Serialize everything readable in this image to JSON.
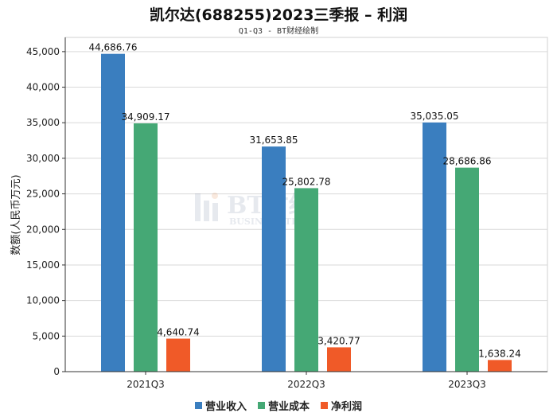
{
  "colors": {
    "revenue": "#3a7ebf",
    "cost": "#45a875",
    "profit": "#f05a28"
  },
  "chart_data": {
    "type": "bar",
    "title": "凯尔达(688255)2023三季报 – 利润",
    "subtitle": "Q1-Q3 - BT财经绘制",
    "ylabel": "数额(人民币万元)",
    "xlabel": "",
    "categories": [
      "2021Q3",
      "2022Q3",
      "2023Q3"
    ],
    "ylim": [
      0,
      47000
    ],
    "yticks": [
      0,
      5000,
      10000,
      15000,
      20000,
      25000,
      30000,
      35000,
      40000,
      45000
    ],
    "ytick_labels": [
      "0",
      "5,000",
      "10,000",
      "15,000",
      "20,000",
      "25,000",
      "30,000",
      "35,000",
      "40,000",
      "45,000"
    ],
    "series": [
      {
        "name": "营业收入",
        "values": [
          44686.76,
          31653.85,
          35035.05
        ],
        "labels": [
          "44,686.76",
          "31,653.85",
          "35,035.05"
        ]
      },
      {
        "name": "营业成本",
        "values": [
          34909.17,
          25802.78,
          28686.86
        ],
        "labels": [
          "34,909.17",
          "25,802.78",
          "28,686.86"
        ]
      },
      {
        "name": "净利润",
        "values": [
          4640.74,
          3420.77,
          1638.24
        ],
        "labels": [
          "4,640.74",
          "3,420.77",
          "1,638.24"
        ]
      }
    ],
    "grid": true,
    "legend_position": "bottom"
  },
  "watermark": {
    "line1": "BT财经",
    "line2": "BUSINESS TIMES"
  }
}
